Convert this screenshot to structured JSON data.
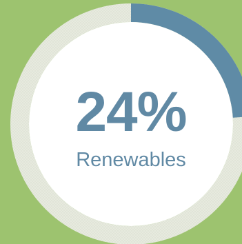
{
  "chart_data": {
    "type": "pie",
    "values": [
      24,
      76
    ],
    "value_text": "24%",
    "label_text": "Renewables",
    "title": "",
    "colors": {
      "progress": "#5f8ba6",
      "track": "#e6e9df",
      "track_pattern": "#d6dbcd",
      "center": "#ffffff",
      "background": "#9dc36f",
      "text": "#6089a4"
    }
  }
}
